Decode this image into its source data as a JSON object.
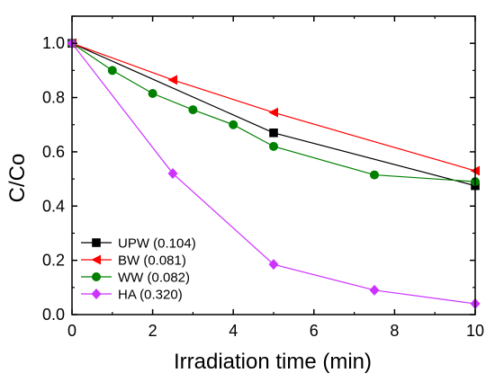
{
  "chart_data": {
    "type": "line",
    "title": "",
    "xlabel": "Irradiation time (min)",
    "ylabel": "C/Co",
    "xlim": [
      0,
      10
    ],
    "ylim": [
      0,
      1.1
    ],
    "xticks": [
      0,
      2,
      4,
      6,
      8,
      10
    ],
    "yticks": [
      0.0,
      0.2,
      0.4,
      0.6,
      0.8,
      1.0
    ],
    "xtick_labels": [
      "0",
      "2",
      "4",
      "6",
      "8",
      "10"
    ],
    "ytick_labels": [
      "0.0",
      "0.2",
      "0.4",
      "0.6",
      "0.8",
      "1.0"
    ],
    "grid": false,
    "legend_position": "bottom-left",
    "series": [
      {
        "name": "UPW (0.104)",
        "color": "#000000",
        "marker": "square",
        "x": [
          0,
          5,
          10
        ],
        "y": [
          1.0,
          0.67,
          0.475
        ]
      },
      {
        "name": "BW (0.081)",
        "color": "#ff0000",
        "marker": "triangle-left",
        "x": [
          0,
          2.5,
          5,
          10
        ],
        "y": [
          1.0,
          0.865,
          0.745,
          0.53
        ]
      },
      {
        "name": "WW (0.082)",
        "color": "#008000",
        "marker": "circle",
        "x": [
          0,
          1,
          2,
          3,
          4,
          5,
          7.5,
          10
        ],
        "y": [
          1.0,
          0.9,
          0.815,
          0.755,
          0.7,
          0.62,
          0.515,
          0.49
        ]
      },
      {
        "name": "HA (0.320)",
        "color": "#cc33ff",
        "marker": "diamond",
        "x": [
          0,
          2.5,
          5,
          7.5,
          10
        ],
        "y": [
          1.0,
          0.52,
          0.185,
          0.09,
          0.04
        ]
      }
    ]
  }
}
